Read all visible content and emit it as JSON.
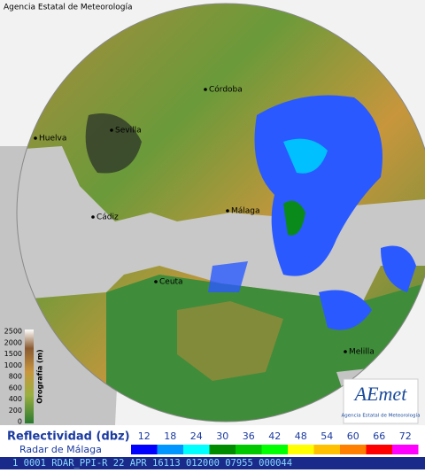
{
  "header": {
    "agency": "Agencia Estatal de Meteorología"
  },
  "cities": [
    "Córdoba",
    "Sevilla",
    "Huelva",
    "Málaga",
    "Cádiz",
    "Ceuta",
    "Melilla"
  ],
  "orography": {
    "title": "Orografía (m)",
    "levels": [
      "2500",
      "2000",
      "1500",
      "1000",
      "800",
      "600",
      "400",
      "200",
      "0"
    ]
  },
  "logo": {
    "name": "AEmet",
    "subtitle": "Agencia Estatal de Meteorología"
  },
  "legend": {
    "title": "Reflectividad (dbz)",
    "radar": "Radar de Málaga",
    "levels": [
      "12",
      "18",
      "24",
      "30",
      "36",
      "42",
      "48",
      "54",
      "60",
      "66",
      "72"
    ],
    "colors": [
      "#0000ff",
      "#0096ff",
      "#00ffff",
      "#008c00",
      "#00c800",
      "#00ff00",
      "#ffff00",
      "#ffc000",
      "#ff8000",
      "#ff0000",
      "#ff00ff"
    ]
  },
  "status": "1 0001 RDAR_PPI-R  22 APR 16113 012000 07955 000044"
}
